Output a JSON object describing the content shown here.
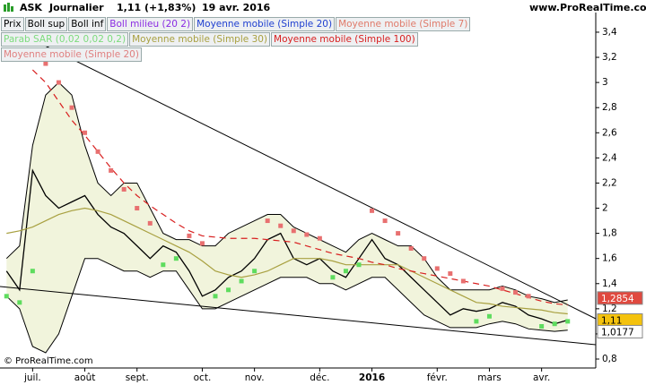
{
  "header": {
    "symbol": "ASK",
    "period": "Journalier",
    "quote": "1,11 (+1,83%)",
    "date": "19 avr. 2016",
    "site": "www.ProRealTime.com"
  },
  "footer": {
    "copyright": "© ProRealTime.com"
  },
  "chart_data": {
    "type": "line",
    "legend": [
      {
        "label": "Prix",
        "color": "#000000"
      },
      {
        "label": "Boll sup",
        "color": "#000000"
      },
      {
        "label": "Boll inf",
        "color": "#000000"
      },
      {
        "label": "Boll milieu (20 2)",
        "color": "#8a2be2"
      },
      {
        "label": "Moyenne mobile (Simple 20)",
        "color": "#1f3fd0"
      },
      {
        "label": "Moyenne mobile (Simple 7)",
        "color": "#e07a6a"
      },
      {
        "label": "Parab SAR (0,02 0,02 0,2)",
        "color": "#7ddc7d"
      },
      {
        "label": "Moyenne mobile (Simple 30)",
        "color": "#a8a040"
      },
      {
        "label": "Moyenne mobile (Simple 100)",
        "color": "#d82020"
      },
      {
        "label": "Moyenne mobile (Simple 20)",
        "color": "#e08080"
      }
    ],
    "categories": [
      null,
      null,
      "juil.",
      null,
      null,
      null,
      "août",
      null,
      null,
      null,
      "sept.",
      null,
      null,
      null,
      null,
      "oct.",
      null,
      null,
      null,
      "nov.",
      null,
      null,
      null,
      null,
      "déc.",
      null,
      null,
      null,
      "2016",
      null,
      null,
      null,
      null,
      "févr.",
      null,
      null,
      null,
      "mars",
      null,
      null,
      null,
      "avr.",
      null,
      null
    ],
    "series": [
      {
        "color": "#000000",
        "style": "close",
        "values": [
          1.5,
          1.35,
          2.3,
          2.1,
          2.0,
          2.05,
          2.1,
          1.95,
          1.85,
          1.8,
          1.7,
          1.6,
          1.7,
          1.65,
          1.5,
          1.3,
          1.35,
          1.45,
          1.5,
          1.6,
          1.75,
          1.8,
          1.6,
          1.55,
          1.6,
          1.5,
          1.45,
          1.6,
          1.75,
          1.6,
          1.55,
          1.45,
          1.35,
          1.25,
          1.15,
          1.2,
          1.18,
          1.2,
          1.25,
          1.22,
          1.15,
          1.12,
          1.08,
          1.11
        ]
      },
      {
        "color": "#000000",
        "style": "band-upper",
        "values": [
          1.6,
          1.7,
          2.5,
          2.9,
          3.0,
          2.9,
          2.5,
          2.2,
          2.1,
          2.2,
          2.2,
          2.0,
          1.8,
          1.75,
          1.75,
          1.7,
          1.7,
          1.8,
          1.85,
          1.9,
          1.95,
          1.95,
          1.85,
          1.8,
          1.75,
          1.7,
          1.65,
          1.75,
          1.8,
          1.75,
          1.7,
          1.7,
          1.6,
          1.45,
          1.35,
          1.35,
          1.35,
          1.35,
          1.38,
          1.35,
          1.3,
          1.28,
          1.25,
          1.27
        ]
      },
      {
        "color": "#000000",
        "style": "band-lower",
        "values": [
          1.3,
          1.2,
          0.9,
          0.85,
          1.0,
          1.3,
          1.6,
          1.6,
          1.55,
          1.5,
          1.5,
          1.45,
          1.5,
          1.5,
          1.35,
          1.2,
          1.2,
          1.25,
          1.3,
          1.35,
          1.4,
          1.45,
          1.45,
          1.45,
          1.4,
          1.4,
          1.35,
          1.4,
          1.45,
          1.45,
          1.35,
          1.25,
          1.15,
          1.1,
          1.05,
          1.05,
          1.05,
          1.08,
          1.1,
          1.08,
          1.04,
          1.03,
          1.02,
          1.03
        ]
      },
      {
        "color": "#a8a040",
        "style": "line",
        "values": [
          1.8,
          1.82,
          1.85,
          1.9,
          1.95,
          1.98,
          2.0,
          1.98,
          1.95,
          1.9,
          1.85,
          1.8,
          1.75,
          1.7,
          1.65,
          1.58,
          1.5,
          1.47,
          1.45,
          1.47,
          1.5,
          1.55,
          1.6,
          1.6,
          1.6,
          1.58,
          1.55,
          1.55,
          1.55,
          1.55,
          1.55,
          1.5,
          1.45,
          1.4,
          1.35,
          1.3,
          1.25,
          1.24,
          1.22,
          1.21,
          1.2,
          1.19,
          1.17,
          1.16
        ]
      },
      {
        "color": "#d82020",
        "style": "dashed",
        "values": [
          null,
          null,
          3.1,
          3.0,
          2.85,
          2.7,
          2.58,
          2.45,
          2.32,
          2.2,
          2.1,
          2.02,
          1.95,
          1.88,
          1.82,
          1.78,
          1.77,
          1.76,
          1.76,
          1.76,
          1.75,
          1.74,
          1.73,
          1.7,
          1.67,
          1.64,
          1.62,
          1.6,
          1.57,
          1.55,
          1.52,
          1.5,
          1.48,
          1.46,
          1.44,
          1.42,
          1.4,
          1.38,
          1.35,
          1.32,
          1.29,
          1.26,
          1.24,
          1.23
        ]
      },
      {
        "color": "#e87070",
        "style": "dots",
        "colors": [
          "#5edc5e",
          "#5edc5e",
          "#5edc5e",
          "#e87070",
          "#e87070",
          "#e87070",
          "#e87070",
          "#e87070",
          "#e87070",
          "#e87070",
          "#e87070",
          "#e87070",
          "#5edc5e",
          "#5edc5e",
          "#e87070",
          "#e87070",
          "#5edc5e",
          "#5edc5e",
          "#5edc5e",
          "#5edc5e",
          "#e87070",
          "#e87070",
          "#e87070",
          "#e87070",
          "#e87070",
          "#5edc5e",
          "#5edc5e",
          "#5edc5e",
          "#e87070",
          "#e87070",
          "#e87070",
          "#e87070",
          "#e87070",
          "#e87070",
          "#e87070",
          "#e87070",
          "#5edc5e",
          "#5edc5e",
          "#e87070",
          "#e87070",
          "#e87070",
          "#5edc5e",
          "#5edc5e",
          "#5edc5e"
        ],
        "values": [
          1.3,
          1.25,
          1.5,
          3.15,
          3.0,
          2.8,
          2.6,
          2.45,
          2.3,
          2.15,
          2.0,
          1.88,
          1.55,
          1.6,
          1.78,
          1.72,
          1.3,
          1.35,
          1.42,
          1.5,
          1.9,
          1.86,
          1.82,
          1.79,
          1.76,
          1.45,
          1.5,
          1.55,
          1.98,
          1.9,
          1.8,
          1.68,
          1.6,
          1.52,
          1.48,
          1.42,
          1.1,
          1.14,
          1.36,
          1.33,
          1.3,
          1.06,
          1.08,
          1.1
        ]
      }
    ],
    "price_labels": [
      {
        "value": 1.2854,
        "label": "1,2854",
        "color": "#e0493f",
        "text_color": "#ffffff"
      },
      {
        "value": 1.11,
        "label": "1,11",
        "color": "#f4c20d",
        "text_color": "#000000"
      },
      {
        "value": 1.0177,
        "label": "1,0177",
        "color": "#ffffff",
        "text_color": "#000000"
      }
    ],
    "ylim": [
      0.736,
      3.535
    ],
    "yticks": [
      {
        "value": 0.8,
        "label": "0,8"
      },
      1,
      {
        "value": 1.2,
        "label": "1,2"
      },
      {
        "value": 1.4,
        "label": "1,4"
      },
      {
        "value": 1.6,
        "label": "1,6"
      },
      {
        "value": 1.8,
        "label": "1,8"
      },
      2,
      {
        "value": 2.2,
        "label": "2,2"
      },
      {
        "value": 2.4,
        "label": "2,4"
      },
      {
        "value": 2.6,
        "label": "2,6"
      },
      {
        "value": 2.8,
        "label": "2,8"
      },
      3,
      {
        "value": 3.2,
        "label": "3,2"
      },
      {
        "value": 3.4,
        "label": "3,4"
      }
    ],
    "band_fill": "#f1f4dc"
  }
}
